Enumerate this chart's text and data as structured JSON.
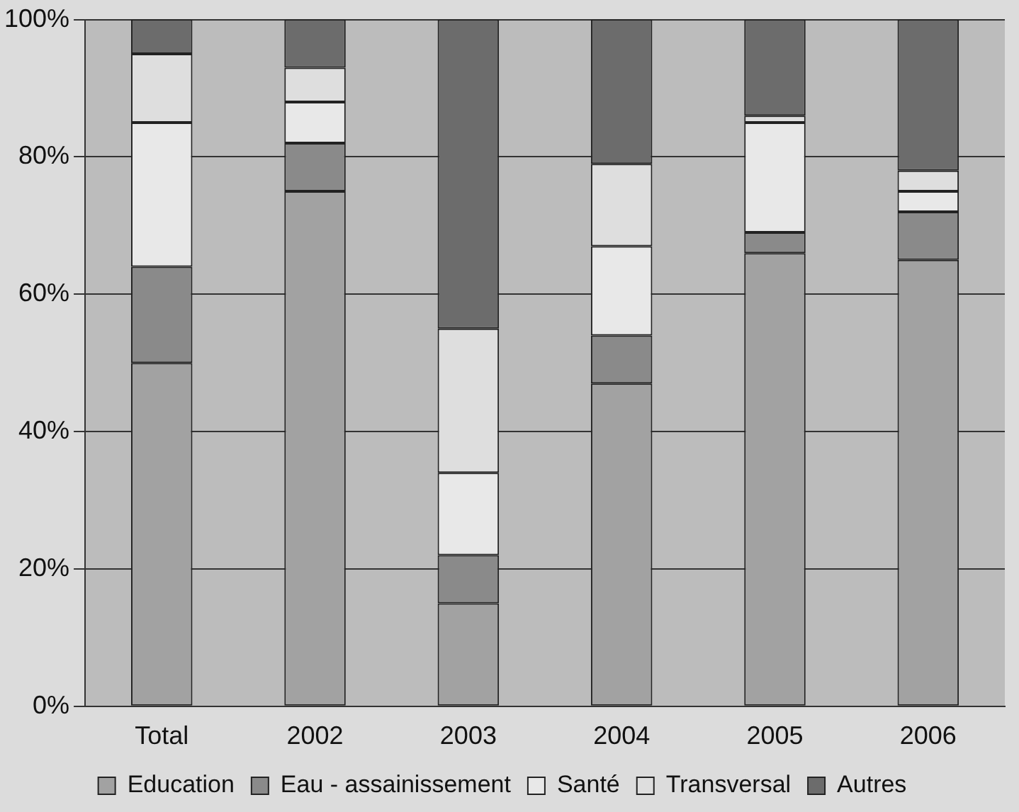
{
  "chart_data": {
    "type": "bar",
    "stacked": true,
    "categories": [
      "Total",
      "2002",
      "2003",
      "2004",
      "2005",
      "2006"
    ],
    "series": [
      {
        "name": "Education",
        "color": "#a2a2a2",
        "values": [
          50,
          75,
          15,
          47,
          66,
          65
        ]
      },
      {
        "name": "Eau - assainissement",
        "color": "#8a8a8a",
        "values": [
          14,
          7,
          7,
          7,
          3,
          7
        ]
      },
      {
        "name": "Santé",
        "color": "#e8e8e8",
        "values": [
          21,
          6,
          12,
          13,
          16,
          3
        ]
      },
      {
        "name": "Transversal",
        "color": "#dedede",
        "values": [
          10,
          5,
          21,
          12,
          1,
          3
        ]
      },
      {
        "name": "Autres",
        "color": "#6c6c6c",
        "values": [
          5,
          7,
          45,
          21,
          14,
          22
        ]
      }
    ],
    "ylim": [
      0,
      100
    ],
    "yticks": [
      {
        "value": 0,
        "label": "0%"
      },
      {
        "value": 20,
        "label": "20%"
      },
      {
        "value": 40,
        "label": "40%"
      },
      {
        "value": 60,
        "label": "60%"
      },
      {
        "value": 80,
        "label": "80%"
      },
      {
        "value": 100,
        "label": "100%"
      }
    ],
    "grid": "y",
    "legend": "bottom"
  }
}
